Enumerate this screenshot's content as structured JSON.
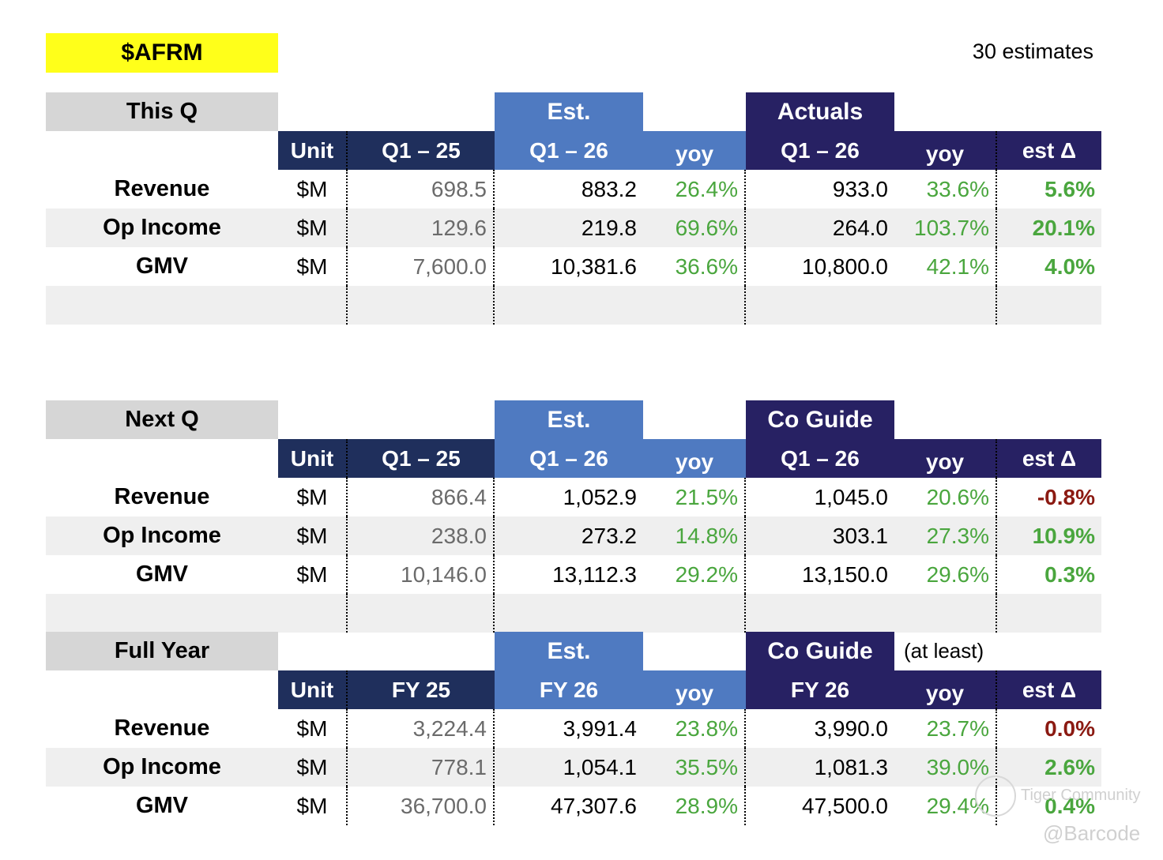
{
  "ticker": "$AFRM",
  "estimates_count": "30 estimates",
  "sections": [
    {
      "title": "This Q",
      "est_band": "Est.",
      "right_band": "Actuals",
      "note": "",
      "headers": [
        "Unit",
        "Q1 – 25",
        "Q1 – 26",
        "yoy",
        "Q1 – 26",
        "yoy",
        "est Δ"
      ],
      "rows": [
        {
          "label": "Revenue",
          "unit": "$M",
          "prior": "698.5",
          "est": "883.2",
          "est_yoy": "26.4%",
          "actual": "933.0",
          "act_yoy": "33.6%",
          "delta": "5.6%",
          "delta_sign": "pos"
        },
        {
          "label": "Op Income",
          "unit": "$M",
          "prior": "129.6",
          "est": "219.8",
          "est_yoy": "69.6%",
          "actual": "264.0",
          "act_yoy": "103.7%",
          "delta": "20.1%",
          "delta_sign": "pos"
        },
        {
          "label": "GMV",
          "unit": "$M",
          "prior": "7,600.0",
          "est": "10,381.6",
          "est_yoy": "36.6%",
          "actual": "10,800.0",
          "act_yoy": "42.1%",
          "delta": "4.0%",
          "delta_sign": "pos"
        }
      ]
    },
    {
      "title": "Next Q",
      "est_band": "Est.",
      "right_band": "Co Guide",
      "note": "",
      "headers": [
        "Unit",
        "Q1 – 25",
        "Q1 – 26",
        "yoy",
        "Q1 – 26",
        "yoy",
        "est Δ"
      ],
      "rows": [
        {
          "label": "Revenue",
          "unit": "$M",
          "prior": "866.4",
          "est": "1,052.9",
          "est_yoy": "21.5%",
          "actual": "1,045.0",
          "act_yoy": "20.6%",
          "delta": "-0.8%",
          "delta_sign": "neg"
        },
        {
          "label": "Op Income",
          "unit": "$M",
          "prior": "238.0",
          "est": "273.2",
          "est_yoy": "14.8%",
          "actual": "303.1",
          "act_yoy": "27.3%",
          "delta": "10.9%",
          "delta_sign": "pos"
        },
        {
          "label": "GMV",
          "unit": "$M",
          "prior": "10,146.0",
          "est": "13,112.3",
          "est_yoy": "29.2%",
          "actual": "13,150.0",
          "act_yoy": "29.6%",
          "delta": "0.3%",
          "delta_sign": "pos"
        }
      ]
    },
    {
      "title": "Full Year",
      "est_band": "Est.",
      "right_band": "Co Guide",
      "note": "(at least)",
      "headers": [
        "Unit",
        "FY 25",
        "FY 26",
        "yoy",
        "FY 26",
        "yoy",
        "est Δ"
      ],
      "rows": [
        {
          "label": "Revenue",
          "unit": "$M",
          "prior": "3,224.4",
          "est": "3,991.4",
          "est_yoy": "23.8%",
          "actual": "3,990.0",
          "act_yoy": "23.7%",
          "delta": "0.0%",
          "delta_sign": "neg"
        },
        {
          "label": "Op Income",
          "unit": "$M",
          "prior": "778.1",
          "est": "1,054.1",
          "est_yoy": "35.5%",
          "actual": "1,081.3",
          "act_yoy": "39.0%",
          "delta": "2.6%",
          "delta_sign": "pos"
        },
        {
          "label": "GMV",
          "unit": "$M",
          "prior": "36,700.0",
          "est": "47,307.6",
          "est_yoy": "28.9%",
          "actual": "47,500.0",
          "act_yoy": "29.4%",
          "delta": "0.4%",
          "delta_sign": "pos"
        }
      ]
    }
  ],
  "watermark": {
    "line1": "Tiger Community",
    "line2": "@Barcode"
  },
  "colors": {
    "ticker_bg": "#ffff1a",
    "title_bg": "#d6d6d6",
    "est_blue": "#4f7ac1",
    "header_navy": "#1f2f5c",
    "actual_purple": "#272163",
    "positive_green": "#4aa63e",
    "negative_red": "#8b1a12",
    "stripe": "#efefef"
  }
}
